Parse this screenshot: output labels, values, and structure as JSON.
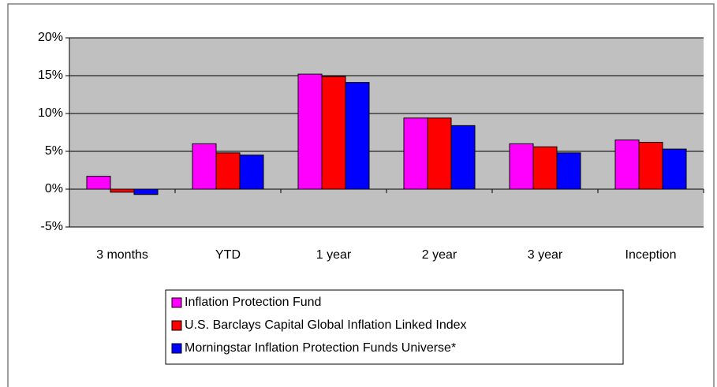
{
  "chart_data": {
    "type": "bar",
    "categories": [
      "3 months",
      "YTD",
      "1 year",
      "2 year",
      "3 year",
      "Inception"
    ],
    "series": [
      {
        "name": "Inflation Protection Fund",
        "color": "#ff00ff",
        "values": [
          1.7,
          6.0,
          15.2,
          9.4,
          6.0,
          6.5
        ]
      },
      {
        "name": "U.S. Barclays Capital Global Inflation Linked Index",
        "color": "#ff0000",
        "values": [
          -0.4,
          4.8,
          14.9,
          9.4,
          5.6,
          6.2
        ]
      },
      {
        "name": "Morningstar Inflation Protection Funds Universe*",
        "color": "#0000ff",
        "values": [
          -0.7,
          4.5,
          14.1,
          8.4,
          4.8,
          5.3
        ]
      }
    ],
    "ylim": [
      -5,
      20
    ],
    "yticks": [
      {
        "value": -5,
        "label": "-5%"
      },
      {
        "value": 0,
        "label": "0%"
      },
      {
        "value": 5,
        "label": "5%"
      },
      {
        "value": 10,
        "label": "10%"
      },
      {
        "value": 15,
        "label": "15%"
      },
      {
        "value": 20,
        "label": "20%"
      }
    ],
    "grid": true,
    "background": "#c0c0c0"
  }
}
